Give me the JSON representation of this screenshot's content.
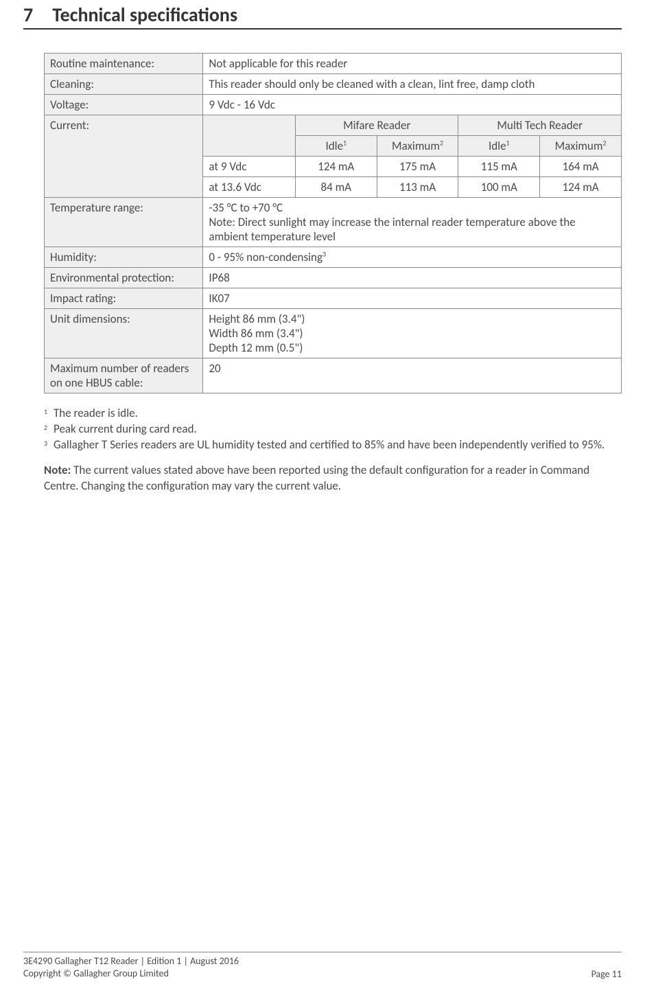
{
  "header": {
    "section_number": "7",
    "section_title": "Technical specifications"
  },
  "table": {
    "rows": {
      "routine_label": "Routine maintenance:",
      "routine_value": "Not applicable for this reader",
      "cleaning_label": "Cleaning:",
      "cleaning_value": "This reader should only be cleaned with a clean, lint free, damp cloth",
      "voltage_label": "Voltage:",
      "voltage_value": "9 Vdc - 16 Vdc",
      "current_label": "Current:",
      "mifare_header": "Mifare Reader",
      "multitech_header": "Multi Tech Reader",
      "idle_label": "Idle",
      "maximum_label": "Maximum",
      "sup1": "1",
      "sup2": "2",
      "sup3": "3",
      "at9_label": "at 9 Vdc",
      "at9_mifare_idle": "124 mA",
      "at9_mifare_max": "175 mA",
      "at9_multi_idle": "115 mA",
      "at9_multi_max": "164 mA",
      "at136_label": "at 13.6 Vdc",
      "at136_mifare_idle": "84 mA",
      "at136_mifare_max": "113 mA",
      "at136_multi_idle": "100 mA",
      "at136_multi_max": "124 mA",
      "temp_label": "Temperature range:",
      "temp_value_l1": "-35 °C to +70 °C",
      "temp_value_l2": "Note:  Direct sunlight may increase the internal reader temperature above the ambient temperature level",
      "humidity_label": "Humidity:",
      "humidity_value": "0 - 95% non-condensing",
      "envprot_label": "Environmental protection:",
      "envprot_value": "IP68",
      "impact_label": "Impact rating:",
      "impact_value": "IK07",
      "dims_label": "Unit dimensions:",
      "dims_l1": "Height 86 mm (3.4\")",
      "dims_l2": "Width 86 mm (3.4\")",
      "dims_l3": "Depth 12 mm (0.5\")",
      "maxreaders_label": "Maximum number of readers on one HBUS cable:",
      "maxreaders_value": "20"
    }
  },
  "footnotes": {
    "fn1_num": "1",
    "fn1_text": "The reader is idle.",
    "fn2_num": "2",
    "fn2_text": "Peak current during card read.",
    "fn3_num": "3",
    "fn3_text": "Gallagher T Series readers are UL humidity tested and certified to 85% and have been independently verified to 95%."
  },
  "note": {
    "bold": "Note:",
    "text": "  The current values stated above have been reported using the default configuration for a reader in Command Centre.  Changing the configuration may vary the current value."
  },
  "footer": {
    "left_l1": "3E4290 Gallagher T12 Reader | Edition 1 | August 2016",
    "left_l2": "Copyright © Gallagher Group Limited",
    "right": "Page 11"
  }
}
